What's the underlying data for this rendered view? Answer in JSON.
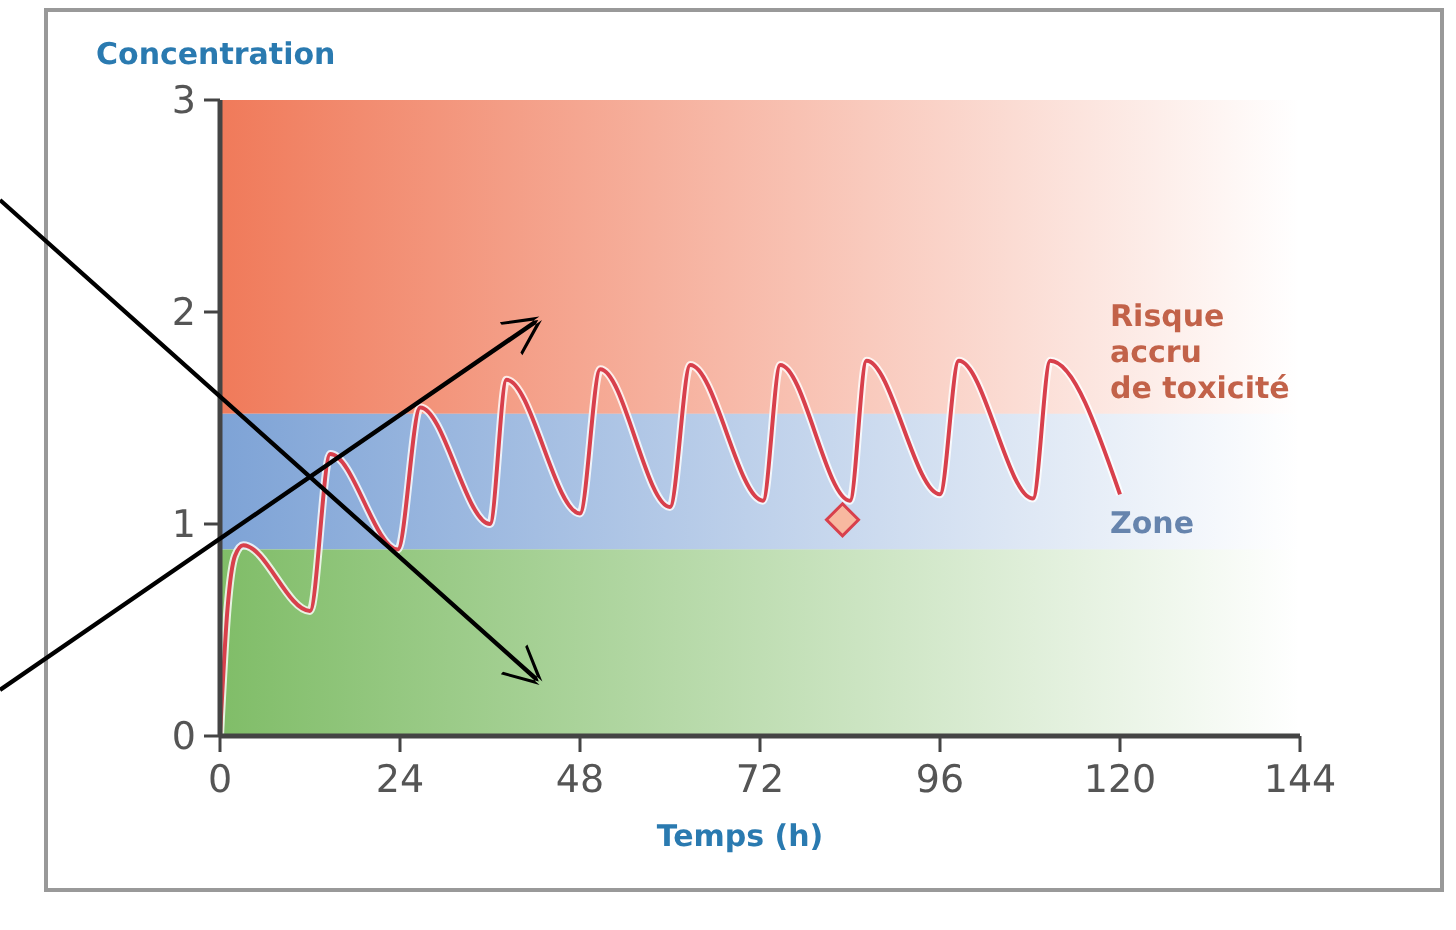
{
  "chart_data": {
    "type": "line",
    "xlabel": "Temps (h)",
    "ylabel": "Concentration",
    "xlim": [
      0,
      144
    ],
    "ylim": [
      0,
      3
    ],
    "xticks": [
      0,
      24,
      48,
      72,
      96,
      120,
      144
    ],
    "yticks": [
      0,
      1,
      2,
      3
    ],
    "grid": false,
    "bands": [
      {
        "axis": "y",
        "from": 1.52,
        "to": 3,
        "label": "Risque\naccru\nde toxicité",
        "color": "#f07a5a"
      },
      {
        "axis": "y",
        "from": 0.88,
        "to": 1.52,
        "label": "Zone",
        "color": "#7ea3d6"
      },
      {
        "axis": "y",
        "from": 0,
        "to": 0.88,
        "label": null,
        "color": "#80bd68"
      }
    ],
    "series": [
      {
        "color": "#d8404c",
        "marker": "none",
        "x": [
          0,
          1,
          2,
          3.1,
          12,
          14.7,
          23.7,
          26.7,
          36,
          38.2,
          48,
          50.7,
          60,
          62.7,
          72.4,
          74.7,
          84,
          86.2,
          96,
          98.5,
          108.4,
          110.7,
          120
        ],
        "values": [
          0,
          0.6,
          0.85,
          0.9,
          0.59,
          1.33,
          0.88,
          1.55,
          1.0,
          1.68,
          1.05,
          1.73,
          1.08,
          1.75,
          1.11,
          1.75,
          1.11,
          1.77,
          1.14,
          1.77,
          1.12,
          1.77,
          1.14
        ]
      },
      {
        "type": "scatter",
        "color": "#d8404c",
        "marker": "diamond",
        "x": [
          83
        ],
        "values": [
          1.02
        ]
      }
    ]
  }
}
